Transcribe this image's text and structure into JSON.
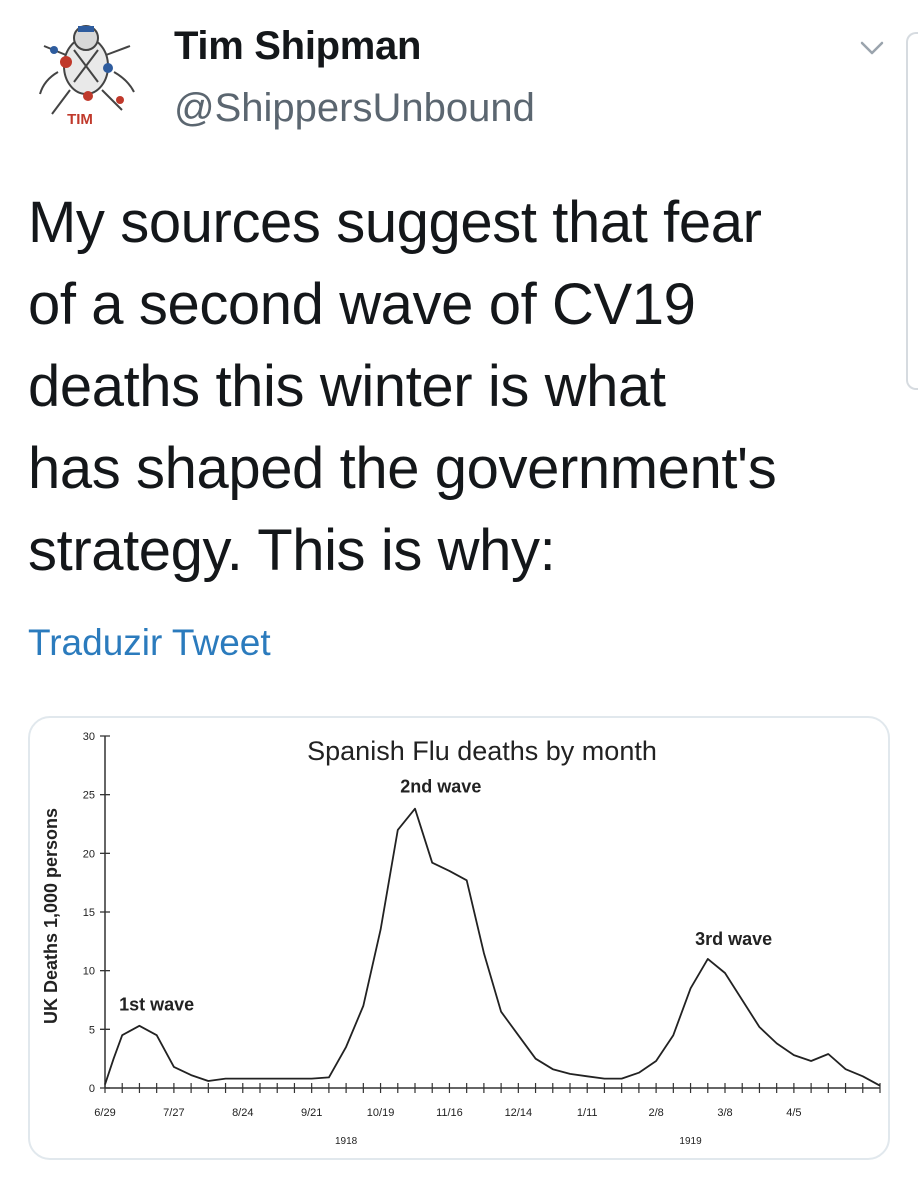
{
  "tweet": {
    "author_name": "Tim Shipman",
    "author_handle": "@ShippersUnbound",
    "avatar_label": "TIM",
    "text": "My sources suggest that fear\nof a second wave of CV19\ndeaths this winter is what\nhas shaped the government's\nstrategy. This is why:",
    "translate_label": "Traduzir Tweet",
    "more_icon": "chevron-down-icon"
  },
  "chart_data": {
    "type": "line",
    "title": "Spanish Flu deaths by month",
    "ylabel": "UK Deaths 1,000 persons",
    "ylim": [
      0,
      30
    ],
    "yticks": [
      0,
      5,
      10,
      15,
      20,
      25,
      30
    ],
    "xlim": [
      0,
      45
    ],
    "xticks": [
      {
        "label": "6/29",
        "x": 0
      },
      {
        "label": "7/27",
        "x": 4
      },
      {
        "label": "8/24",
        "x": 8
      },
      {
        "label": "9/21",
        "x": 12
      },
      {
        "label": "10/19",
        "x": 16
      },
      {
        "label": "11/16",
        "x": 20
      },
      {
        "label": "12/14",
        "x": 24
      },
      {
        "label": "1/11",
        "x": 28
      },
      {
        "label": "2/8",
        "x": 32
      },
      {
        "label": "3/8",
        "x": 36
      },
      {
        "label": "4/5",
        "x": 40
      }
    ],
    "year_labels": [
      {
        "label": "1918",
        "x": 14
      },
      {
        "label": "1919",
        "x": 34
      }
    ],
    "annotations": [
      {
        "label": "1st wave",
        "x": 3,
        "y": 5.4
      },
      {
        "label": "2nd wave",
        "x": 19.5,
        "y": 24
      },
      {
        "label": "3rd wave",
        "x": 36.5,
        "y": 11
      }
    ],
    "series": [
      {
        "x": [
          0,
          0.5,
          1,
          2,
          3,
          4,
          5,
          6,
          7,
          8,
          9,
          10,
          11,
          12,
          13,
          14,
          15,
          16,
          17,
          18,
          19,
          20,
          21,
          22,
          23,
          24,
          25,
          26,
          27,
          28,
          29,
          30,
          31,
          32,
          33,
          34,
          35,
          36,
          37,
          38,
          39,
          40,
          41,
          42,
          43,
          44,
          45
        ],
        "y": [
          0.3,
          2.5,
          4.5,
          5.3,
          4.5,
          1.8,
          1.1,
          0.6,
          0.8,
          0.8,
          0.8,
          0.8,
          0.8,
          0.8,
          0.9,
          3.5,
          7,
          13.5,
          22,
          23.8,
          19.2,
          18.5,
          17.7,
          11.5,
          6.5,
          4.5,
          2.5,
          1.6,
          1.2,
          1.0,
          0.8,
          0.8,
          1.3,
          2.3,
          4.5,
          8.5,
          11.0,
          9.8,
          7.5,
          5.2,
          3.8,
          2.8,
          2.3,
          2.9,
          1.6,
          1.0,
          0.2
        ]
      }
    ]
  }
}
